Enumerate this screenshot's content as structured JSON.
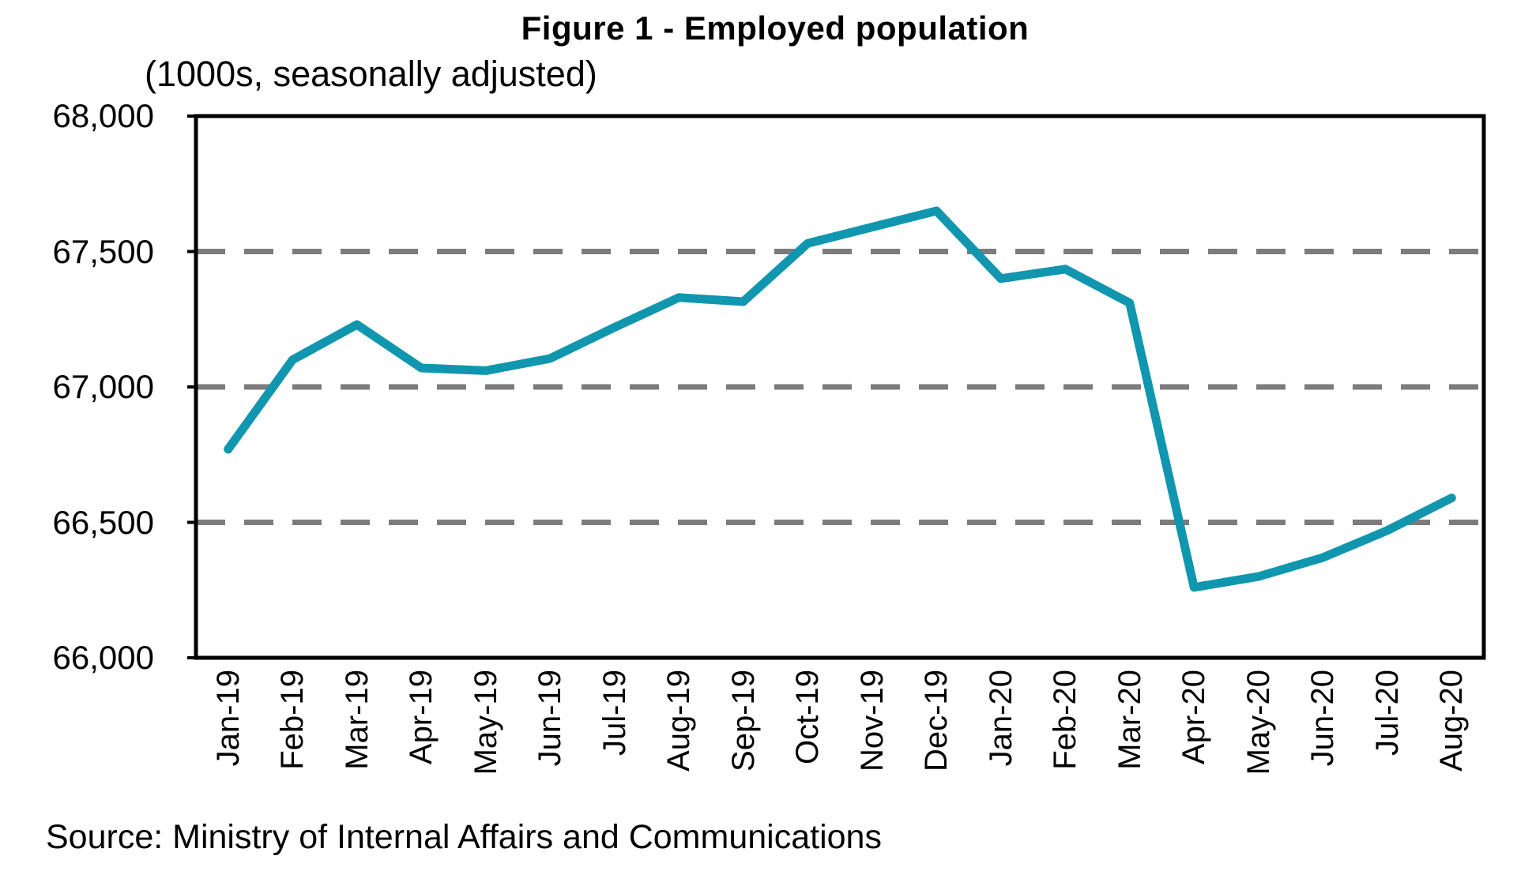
{
  "chart_data": {
    "type": "line",
    "title": "Figure 1 - Employed population",
    "subtitle": "(1000s, seasonally adjusted)",
    "source": "Source: Ministry of Internal Affairs and Communications",
    "categories": [
      "Jan-19",
      "Feb-19",
      "Mar-19",
      "Apr-19",
      "May-19",
      "Jun-19",
      "Jul-19",
      "Aug-19",
      "Sep-19",
      "Oct-19",
      "Nov-19",
      "Dec-19",
      "Jan-20",
      "Feb-20",
      "Mar-20",
      "Apr-20",
      "May-20",
      "Jun-20",
      "Jul-20",
      "Aug-20"
    ],
    "series": [
      {
        "name": "Employed population (1000s, seasonally adjusted)",
        "values": [
          66770,
          67100,
          67230,
          67070,
          67060,
          67105,
          67220,
          67330,
          67315,
          67530,
          67590,
          67650,
          67400,
          67435,
          67310,
          66260,
          66300,
          66370,
          66470,
          66590
        ]
      }
    ],
    "ylim": [
      66000,
      68000
    ],
    "y_ticks": [
      68000,
      67500,
      67000,
      66500,
      66000
    ],
    "y_tick_labels": [
      "68,000",
      "67,500",
      "67,000",
      "66,500",
      "66,000"
    ],
    "gridline_values": [
      67500,
      67000,
      66500
    ],
    "gridline_style": "dashed",
    "legend": "none",
    "xlabel": "",
    "ylabel": ""
  },
  "colors": {
    "line": "#1096AE",
    "gridline": "#7C7C7C",
    "axis": "#000000",
    "text": "#000000"
  }
}
